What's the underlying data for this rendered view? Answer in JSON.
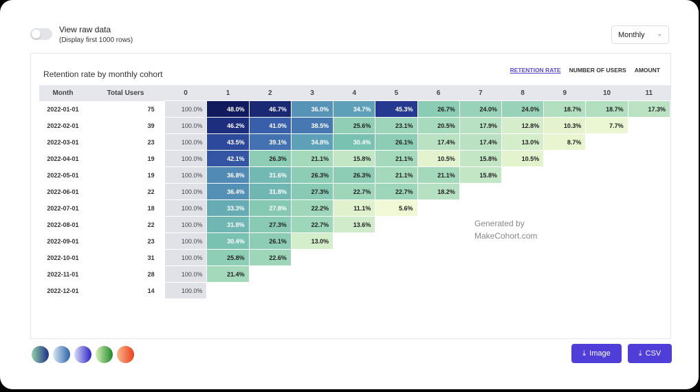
{
  "raw_data": {
    "label": "View raw data",
    "sublabel": "(Display first 1000 rows)",
    "enabled": false
  },
  "period_select": {
    "value": "Monthly"
  },
  "card": {
    "title": "Retention rate by monthly cohort",
    "tabs": [
      {
        "label": "RETENTION RATE",
        "active": true
      },
      {
        "label": "NUMBER OF USERS",
        "active": false
      },
      {
        "label": "AMOUNT",
        "active": false
      }
    ]
  },
  "watermark": {
    "line1": "Generated by",
    "line2": "MakeCohort.com"
  },
  "palettes": [
    "green-blue",
    "light-blue",
    "blue-purple",
    "green",
    "orange-red"
  ],
  "buttons": {
    "image": "Image",
    "csv": "CSV"
  },
  "colors": {
    "accent": "#4f3fd8",
    "period0": "#e0e2e8"
  },
  "chart_data": {
    "type": "heatmap",
    "title": "Retention rate by monthly cohort",
    "columns": [
      "Month",
      "Total Users",
      "0",
      "1",
      "2",
      "3",
      "4",
      "5",
      "6",
      "7",
      "8",
      "9",
      "10",
      "11"
    ],
    "rows": [
      {
        "month": "2022-01-01",
        "users": 75,
        "values": [
          "100.0%",
          "48.0%",
          "46.7%",
          "36.0%",
          "34.7%",
          "45.3%",
          "26.7%",
          "24.0%",
          "24.0%",
          "18.7%",
          "18.7%",
          "17.3%"
        ]
      },
      {
        "month": "2022-02-01",
        "users": 39,
        "values": [
          "100.0%",
          "46.2%",
          "41.0%",
          "38.5%",
          "25.6%",
          "23.1%",
          "20.5%",
          "17.9%",
          "12.8%",
          "10.3%",
          "7.7%"
        ]
      },
      {
        "month": "2022-03-01",
        "users": 23,
        "values": [
          "100.0%",
          "43.5%",
          "39.1%",
          "34.8%",
          "30.4%",
          "26.1%",
          "17.4%",
          "17.4%",
          "13.0%",
          "8.7%"
        ]
      },
      {
        "month": "2022-04-01",
        "users": 19,
        "values": [
          "100.0%",
          "42.1%",
          "26.3%",
          "21.1%",
          "15.8%",
          "21.1%",
          "10.5%",
          "15.8%",
          "10.5%"
        ]
      },
      {
        "month": "2022-05-01",
        "users": 19,
        "values": [
          "100.0%",
          "36.8%",
          "31.6%",
          "26.3%",
          "26.3%",
          "21.1%",
          "21.1%",
          "15.8%"
        ]
      },
      {
        "month": "2022-06-01",
        "users": 22,
        "values": [
          "100.0%",
          "36.4%",
          "31.8%",
          "27.3%",
          "22.7%",
          "22.7%",
          "18.2%"
        ]
      },
      {
        "month": "2022-07-01",
        "users": 18,
        "values": [
          "100.0%",
          "33.3%",
          "27.8%",
          "22.2%",
          "11.1%",
          "5.6%"
        ]
      },
      {
        "month": "2022-08-01",
        "users": 22,
        "values": [
          "100.0%",
          "31.8%",
          "27.3%",
          "22.7%",
          "13.6%"
        ]
      },
      {
        "month": "2022-09-01",
        "users": 23,
        "values": [
          "100.0%",
          "30.4%",
          "26.1%",
          "13.0%"
        ]
      },
      {
        "month": "2022-10-01",
        "users": 31,
        "values": [
          "100.0%",
          "25.8%",
          "22.6%"
        ]
      },
      {
        "month": "2022-11-01",
        "users": 28,
        "values": [
          "100.0%",
          "21.4%"
        ]
      },
      {
        "month": "2022-12-01",
        "users": 14,
        "values": [
          "100.0%"
        ]
      }
    ]
  }
}
